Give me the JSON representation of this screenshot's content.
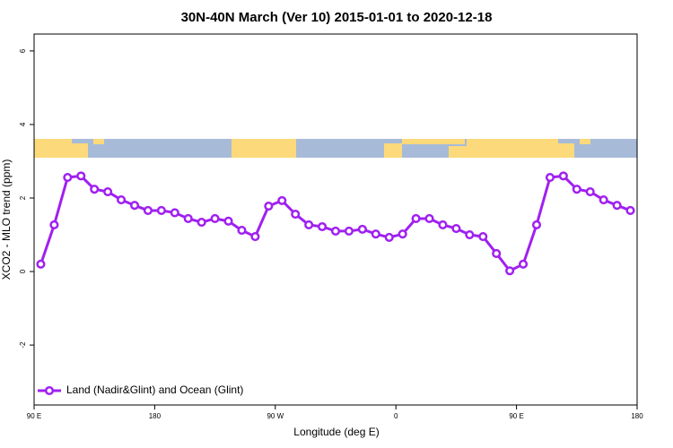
{
  "chart_data": {
    "type": "line",
    "title": "30N-40N March (Ver 10)   2015-01-01 to 2020-12-18",
    "xlabel": "Longitude (deg E)",
    "ylabel": "XCO2 - MLO trend (ppm)",
    "x": [
      95,
      105,
      115,
      125,
      135,
      145,
      155,
      165,
      175,
      185,
      195,
      205,
      215,
      225,
      235,
      245,
      255,
      265,
      275,
      285,
      295,
      305,
      315,
      325,
      335,
      345,
      355,
      365,
      375,
      385,
      395,
      405,
      415,
      425,
      435,
      445,
      455,
      465,
      475,
      485,
      495,
      505,
      515,
      525,
      535
    ],
    "series": [
      {
        "name": "Land (Nadir&Glint) and Ocean (Glint)",
        "color": "#a020f0",
        "values": [
          0.2,
          1.27,
          2.56,
          2.6,
          2.24,
          2.17,
          1.95,
          1.8,
          1.66,
          1.66,
          1.6,
          1.44,
          1.34,
          1.44,
          1.37,
          1.12,
          0.95,
          1.78,
          1.93,
          1.56,
          1.27,
          1.22,
          1.1,
          1.1,
          1.15,
          1.02,
          0.93,
          1.02,
          1.44,
          1.44,
          1.27,
          1.17,
          1.0,
          0.95,
          0.49,
          0.02,
          0.2,
          1.27,
          2.56,
          2.6,
          2.24,
          2.17,
          1.95,
          1.8,
          1.66
        ]
      }
    ],
    "xlim": [
      90,
      540
    ],
    "xticks": [
      {
        "value": 90,
        "label": "90 E"
      },
      180,
      {
        "value": 270,
        "label": "90 W"
      },
      {
        "value": 360,
        "label": "0"
      },
      {
        "value": 450,
        "label": "90 E"
      },
      {
        "value": 540,
        "label": "180"
      }
    ],
    "ylim": [
      -3.63,
      6.46
    ],
    "yticks": [
      -2,
      0,
      2,
      4,
      6
    ],
    "legend": "bottom-left"
  }
}
